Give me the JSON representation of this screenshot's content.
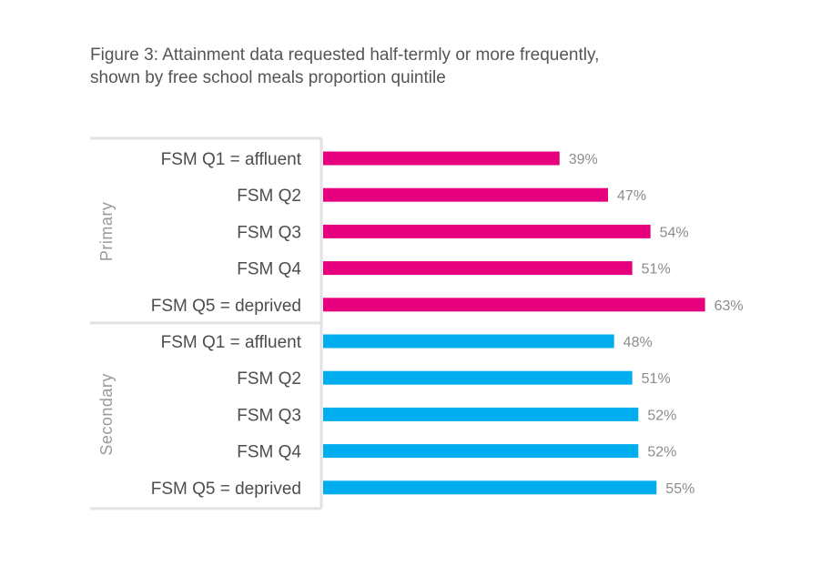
{
  "title_lines": [
    "Figure 3: Attainment data requested half-termly or more frequently,",
    "shown by free school meals proportion quintile"
  ],
  "chart_data": {
    "type": "bar",
    "orientation": "horizontal",
    "unit": "%",
    "xlim": [
      0,
      100
    ],
    "groups": [
      {
        "name": "Primary",
        "color": "#E6007E",
        "categories": [
          "FSM Q1 = affluent",
          "FSM Q2",
          "FSM Q3",
          "FSM Q4",
          "FSM Q5 = deprived"
        ],
        "values": [
          39,
          47,
          54,
          51,
          63
        ]
      },
      {
        "name": "Secondary",
        "color": "#00AEEF",
        "categories": [
          "FSM Q1 = affluent",
          "FSM Q2",
          "FSM Q3",
          "FSM Q4",
          "FSM Q5 = deprived"
        ],
        "values": [
          48,
          51,
          52,
          52,
          55
        ]
      }
    ]
  }
}
